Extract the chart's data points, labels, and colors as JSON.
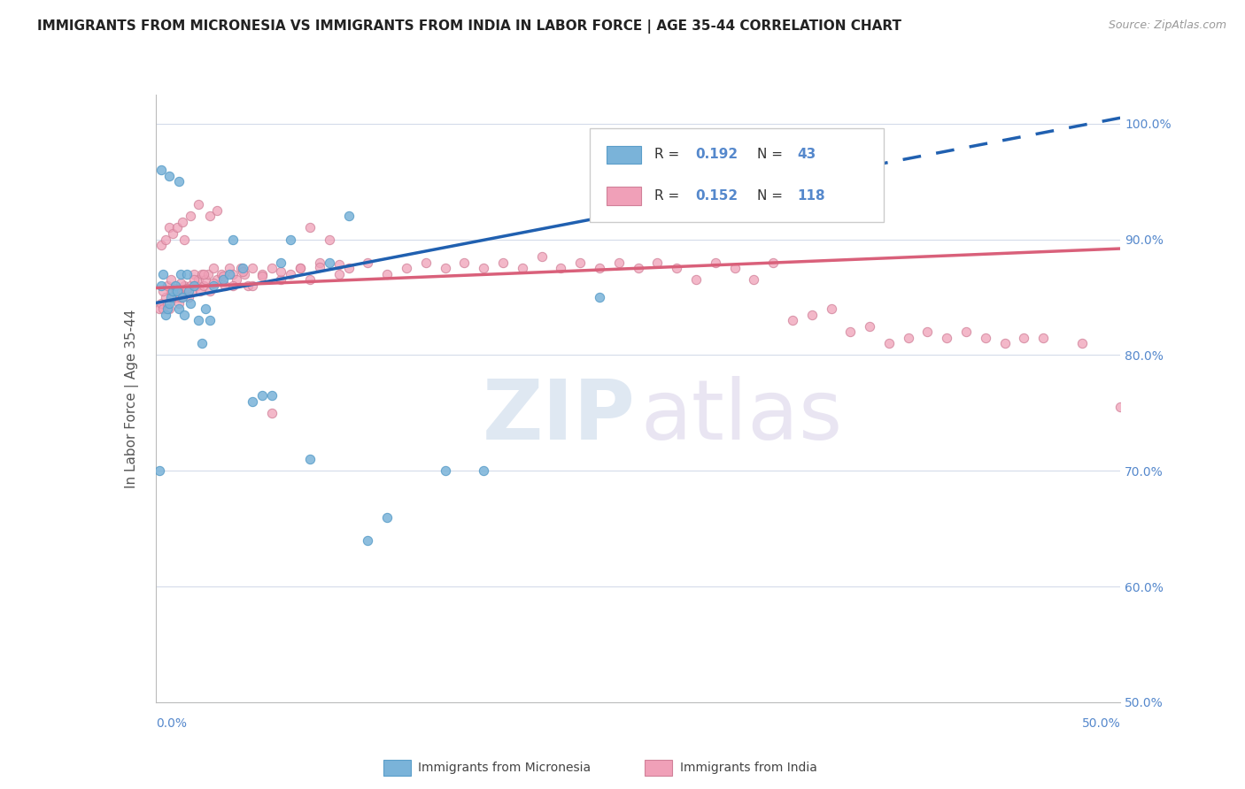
{
  "title": "IMMIGRANTS FROM MICRONESIA VS IMMIGRANTS FROM INDIA IN LABOR FORCE | AGE 35-44 CORRELATION CHART",
  "source": "Source: ZipAtlas.com",
  "ylabel": "In Labor Force | Age 35-44",
  "yticks": [
    "50.0%",
    "60.0%",
    "70.0%",
    "80.0%",
    "90.0%",
    "100.0%"
  ],
  "ytick_vals": [
    0.5,
    0.6,
    0.7,
    0.8,
    0.9,
    1.0
  ],
  "xmin": 0.0,
  "xmax": 0.5,
  "ymin": 0.5,
  "ymax": 1.025,
  "micronesia_scatter_color": "#7ab3d9",
  "micronesia_scatter_edge": "#5a9ec9",
  "india_scatter_color": "#f0a0b8",
  "india_scatter_edge": "#d08098",
  "scatter_size": 55,
  "micronesia_trend_color": "#2060b0",
  "india_trend_color": "#d9607a",
  "trend_linewidth": 2.5,
  "background_color": "#ffffff",
  "grid_color": "#d0d8e8",
  "title_color": "#222222",
  "axis_color": "#5588cc",
  "micronesia_trend_x0": 0.0,
  "micronesia_trend_y0": 0.845,
  "micronesia_trend_x1": 0.5,
  "micronesia_trend_y1": 1.005,
  "micronesia_trend_solid_end": 0.37,
  "india_trend_x0": 0.0,
  "india_trend_y0": 0.858,
  "india_trend_x1": 0.5,
  "india_trend_y1": 0.892,
  "micronesia_x": [
    0.002,
    0.003,
    0.004,
    0.005,
    0.006,
    0.007,
    0.008,
    0.009,
    0.01,
    0.011,
    0.012,
    0.013,
    0.014,
    0.015,
    0.016,
    0.017,
    0.018,
    0.02,
    0.022,
    0.024,
    0.026,
    0.028,
    0.03,
    0.035,
    0.038,
    0.04,
    0.045,
    0.05,
    0.055,
    0.06,
    0.065,
    0.07,
    0.08,
    0.09,
    0.1,
    0.11,
    0.12,
    0.15,
    0.003,
    0.007,
    0.012,
    0.17,
    0.23
  ],
  "micronesia_y": [
    0.7,
    0.86,
    0.87,
    0.835,
    0.84,
    0.845,
    0.85,
    0.855,
    0.86,
    0.855,
    0.84,
    0.87,
    0.85,
    0.835,
    0.87,
    0.855,
    0.845,
    0.86,
    0.83,
    0.81,
    0.84,
    0.83,
    0.86,
    0.865,
    0.87,
    0.9,
    0.875,
    0.76,
    0.765,
    0.765,
    0.88,
    0.9,
    0.71,
    0.88,
    0.92,
    0.64,
    0.66,
    0.7,
    0.96,
    0.955,
    0.95,
    0.7,
    0.85
  ],
  "india_x": [
    0.002,
    0.003,
    0.004,
    0.005,
    0.006,
    0.007,
    0.008,
    0.009,
    0.01,
    0.011,
    0.012,
    0.013,
    0.014,
    0.015,
    0.016,
    0.017,
    0.018,
    0.019,
    0.02,
    0.021,
    0.022,
    0.023,
    0.024,
    0.025,
    0.026,
    0.027,
    0.028,
    0.03,
    0.032,
    0.034,
    0.036,
    0.038,
    0.04,
    0.042,
    0.044,
    0.046,
    0.048,
    0.05,
    0.055,
    0.06,
    0.065,
    0.07,
    0.075,
    0.08,
    0.085,
    0.09,
    0.095,
    0.1,
    0.11,
    0.12,
    0.13,
    0.14,
    0.15,
    0.16,
    0.17,
    0.18,
    0.19,
    0.2,
    0.21,
    0.22,
    0.23,
    0.24,
    0.25,
    0.26,
    0.27,
    0.28,
    0.29,
    0.3,
    0.31,
    0.32,
    0.33,
    0.34,
    0.35,
    0.36,
    0.37,
    0.38,
    0.39,
    0.4,
    0.41,
    0.42,
    0.43,
    0.44,
    0.45,
    0.46,
    0.48,
    0.003,
    0.005,
    0.007,
    0.009,
    0.011,
    0.014,
    0.015,
    0.018,
    0.022,
    0.028,
    0.032,
    0.04,
    0.05,
    0.06,
    0.08,
    0.004,
    0.006,
    0.008,
    0.01,
    0.013,
    0.016,
    0.02,
    0.025,
    0.03,
    0.035,
    0.045,
    0.055,
    0.065,
    0.075,
    0.085,
    0.095,
    0.35,
    0.5
  ],
  "india_y": [
    0.84,
    0.845,
    0.84,
    0.85,
    0.845,
    0.84,
    0.855,
    0.85,
    0.855,
    0.85,
    0.845,
    0.85,
    0.855,
    0.86,
    0.855,
    0.85,
    0.86,
    0.855,
    0.87,
    0.86,
    0.865,
    0.855,
    0.87,
    0.86,
    0.865,
    0.87,
    0.855,
    0.875,
    0.865,
    0.87,
    0.86,
    0.875,
    0.87,
    0.865,
    0.875,
    0.87,
    0.86,
    0.875,
    0.87,
    0.875,
    0.865,
    0.87,
    0.875,
    0.865,
    0.88,
    0.9,
    0.87,
    0.875,
    0.88,
    0.87,
    0.875,
    0.88,
    0.875,
    0.88,
    0.875,
    0.88,
    0.875,
    0.885,
    0.875,
    0.88,
    0.875,
    0.88,
    0.875,
    0.88,
    0.875,
    0.865,
    0.88,
    0.875,
    0.865,
    0.88,
    0.83,
    0.835,
    0.84,
    0.82,
    0.825,
    0.81,
    0.815,
    0.82,
    0.815,
    0.82,
    0.815,
    0.81,
    0.815,
    0.815,
    0.81,
    0.895,
    0.9,
    0.91,
    0.905,
    0.91,
    0.915,
    0.9,
    0.92,
    0.93,
    0.92,
    0.925,
    0.86,
    0.86,
    0.75,
    0.91,
    0.855,
    0.86,
    0.865,
    0.858,
    0.862,
    0.858,
    0.865,
    0.87,
    0.862,
    0.868,
    0.872,
    0.868,
    0.872,
    0.875,
    0.876,
    0.878,
    0.96,
    0.755
  ]
}
